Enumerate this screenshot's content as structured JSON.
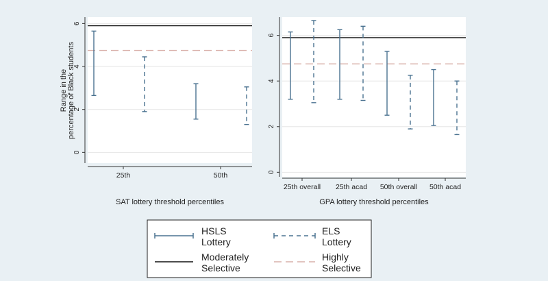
{
  "colors": {
    "background": "#e9f0f4",
    "plot_bg": "#ffffff",
    "lottery": "#4a7290",
    "moderately_selective": "#111111",
    "highly_selective": "#d9b0aa",
    "grid": "#e6e6e6"
  },
  "chart_data": [
    {
      "type": "errorbar",
      "ylabel_line1": "Range in the",
      "ylabel_line2": "percentage of Black students",
      "xlabel": "SAT lottery threshold percentiles",
      "yticks": [
        0,
        2,
        4,
        6
      ],
      "ylim": [
        -0.5,
        6.3
      ],
      "grid": true,
      "categories": [
        "25th",
        "50th"
      ],
      "reference_lines": {
        "moderately_selective": 5.9,
        "highly_selective": 4.75
      },
      "ranges": [
        {
          "series": "HSLS Lottery",
          "category": "25th",
          "low": 2.65,
          "high": 5.65
        },
        {
          "series": "ELS Lottery",
          "category": "25th",
          "low": 1.9,
          "high": 4.45
        },
        {
          "series": "HSLS Lottery",
          "category": "50th",
          "low": 1.55,
          "high": 3.2
        },
        {
          "series": "ELS Lottery",
          "category": "50th",
          "low": 1.3,
          "high": 3.05
        }
      ]
    },
    {
      "type": "errorbar",
      "xlabel": "GPA lottery threshold percentiles",
      "yticks": [
        0,
        2,
        4,
        6
      ],
      "ylim": [
        -0.2,
        6.8
      ],
      "grid": true,
      "categories": [
        "25th overall",
        "25th acad",
        "50th overall",
        "50th acad"
      ],
      "reference_lines": {
        "moderately_selective": 5.9,
        "highly_selective": 4.75
      },
      "ranges": [
        {
          "series": "HSLS Lottery",
          "category": "25th overall",
          "low": 3.2,
          "high": 6.15
        },
        {
          "series": "ELS Lottery",
          "category": "25th overall",
          "low": 3.05,
          "high": 6.65
        },
        {
          "series": "HSLS Lottery",
          "category": "25th acad",
          "low": 3.2,
          "high": 6.25
        },
        {
          "series": "ELS Lottery",
          "category": "25th acad",
          "low": 3.15,
          "high": 6.4
        },
        {
          "series": "HSLS Lottery",
          "category": "50th overall",
          "low": 2.5,
          "high": 5.3
        },
        {
          "series": "ELS Lottery",
          "category": "50th overall",
          "low": 1.9,
          "high": 4.25
        },
        {
          "series": "HSLS Lottery",
          "category": "50th acad",
          "low": 2.05,
          "high": 4.5
        },
        {
          "series": "ELS Lottery",
          "category": "50th acad",
          "low": 1.65,
          "high": 4.0
        }
      ]
    }
  ],
  "legend": [
    {
      "key": "hsls",
      "line1": "HSLS",
      "line2": "Lottery"
    },
    {
      "key": "els",
      "line1": "ELS",
      "line2": "Lottery"
    },
    {
      "key": "mod",
      "line1": "Moderately",
      "line2": "Selective"
    },
    {
      "key": "high",
      "line1": "Highly",
      "line2": "Selective"
    }
  ]
}
